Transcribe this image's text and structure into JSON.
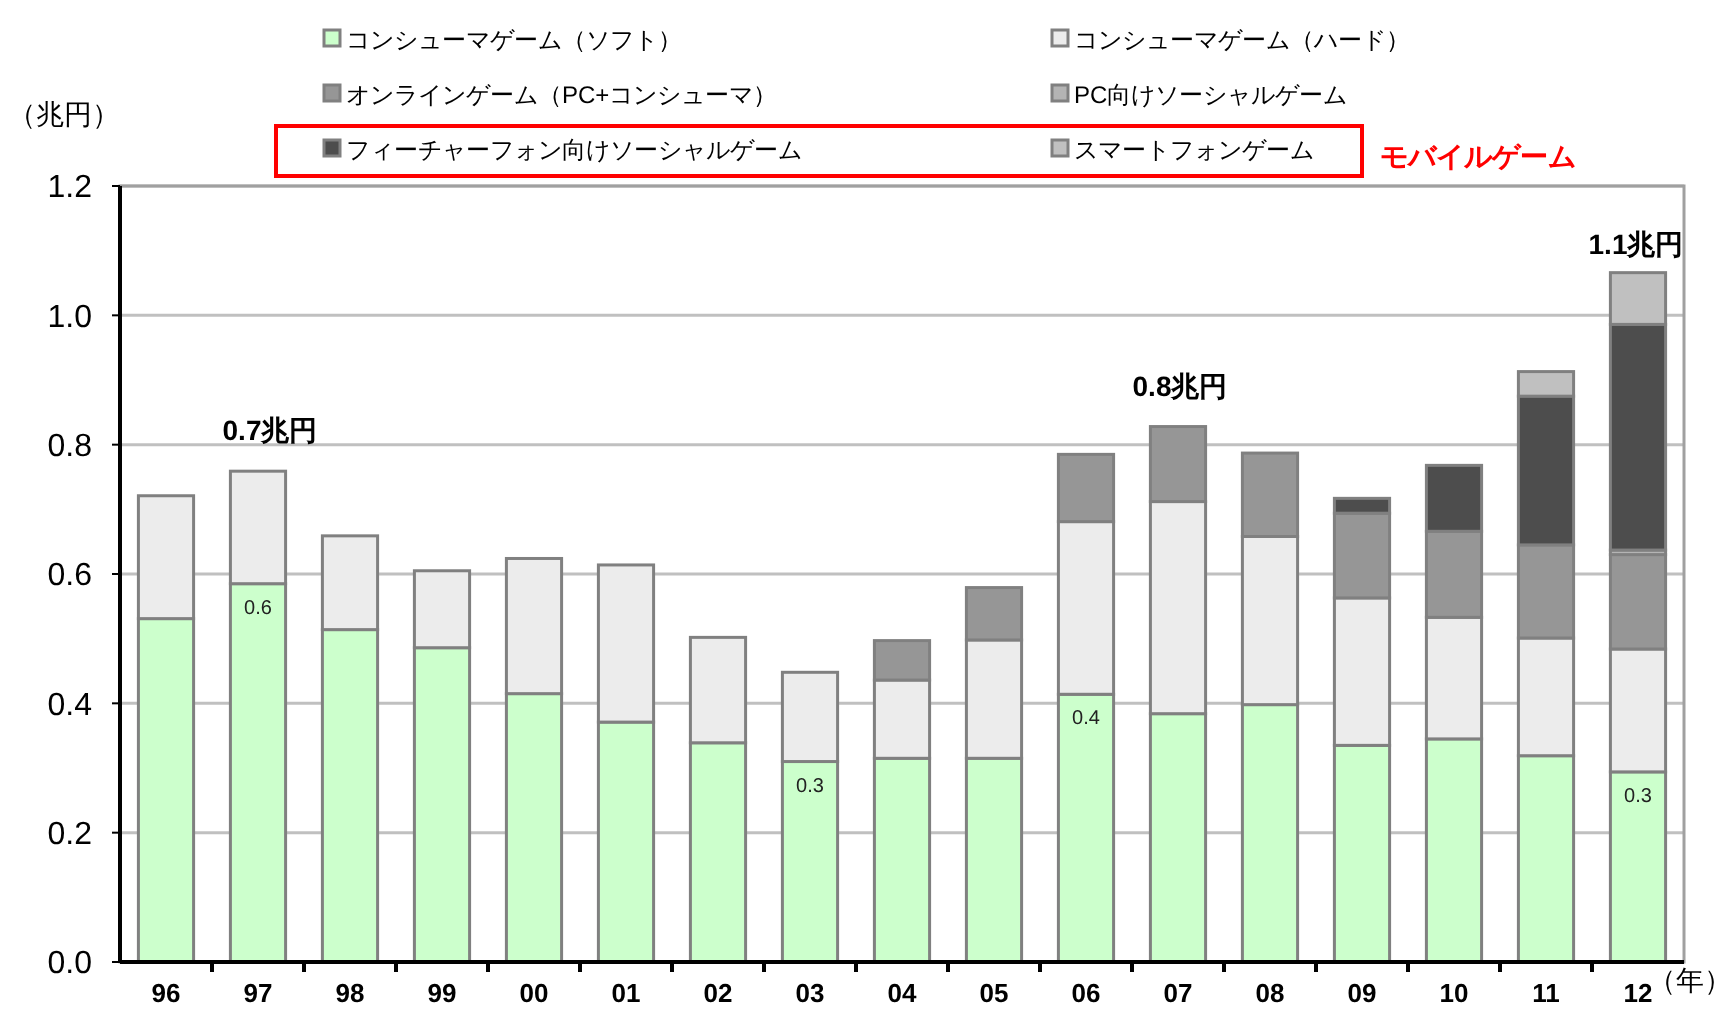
{
  "chart_data": {
    "type": "bar",
    "stacked": true,
    "categories": [
      "96",
      "97",
      "98",
      "99",
      "00",
      "01",
      "02",
      "03",
      "04",
      "05",
      "06",
      "07",
      "08",
      "09",
      "10",
      "11",
      "12"
    ],
    "series": [
      {
        "name": "コンシューマゲーム（ソフト）",
        "color": "#ccffcc",
        "values": [
          0.531,
          0.585,
          0.514,
          0.486,
          0.415,
          0.371,
          0.339,
          0.31,
          0.315,
          0.315,
          0.414,
          0.384,
          0.398,
          0.335,
          0.345,
          0.319,
          0.294
        ],
        "value_labels": [
          null,
          "0.6",
          null,
          null,
          null,
          null,
          null,
          "0.3",
          null,
          null,
          "0.4",
          null,
          null,
          null,
          null,
          null,
          "0.3"
        ]
      },
      {
        "name": "コンシューマゲーム（ハード）",
        "color": "#ececec",
        "values": [
          0.19,
          0.174,
          0.145,
          0.119,
          0.209,
          0.243,
          0.163,
          0.138,
          0.121,
          0.183,
          0.267,
          0.328,
          0.26,
          0.228,
          0.188,
          0.182,
          0.19
        ]
      },
      {
        "name": "オンラインゲーム（PC+コンシューマ）",
        "color": "#969696",
        "values": [
          null,
          null,
          null,
          null,
          null,
          null,
          null,
          null,
          0.061,
          0.081,
          0.104,
          0.116,
          0.129,
          0.131,
          0.133,
          0.144,
          0.146
        ]
      },
      {
        "name": "PC向けソーシャルゲーム",
        "color": "#b4b4b4",
        "values": [
          null,
          null,
          null,
          null,
          null,
          null,
          null,
          null,
          null,
          null,
          null,
          null,
          null,
          null,
          null,
          null,
          0.007
        ]
      },
      {
        "name": "フィーチャーフォン向けソーシャルゲーム",
        "color": "#4d4d4d",
        "values": [
          null,
          null,
          null,
          null,
          null,
          null,
          null,
          null,
          null,
          null,
          null,
          null,
          null,
          0.023,
          0.102,
          0.23,
          0.349
        ]
      },
      {
        "name": "スマートフォンゲーム",
        "color": "#c0c0c0",
        "values": [
          null,
          null,
          null,
          null,
          null,
          null,
          null,
          null,
          null,
          null,
          null,
          null,
          null,
          null,
          null,
          0.038,
          0.08
        ]
      }
    ],
    "ylim": [
      0,
      1.2
    ],
    "yticks": [
      {
        "value": 0,
        "label": "0.0"
      },
      {
        "value": 0.2,
        "label": "0.2"
      },
      {
        "value": 0.4,
        "label": "0.4"
      },
      {
        "value": 0.6,
        "label": "0.6"
      },
      {
        "value": 0.8,
        "label": "0.8"
      },
      {
        "value": 1,
        "label": "1.0"
      },
      {
        "value": 1.2,
        "label": "1.2"
      }
    ],
    "ylabel": "（兆円）",
    "xlabel": "（年）",
    "annotations": [
      "0.7兆円",
      "0.8兆円",
      "1.1兆円",
      "モバイルゲーム"
    ],
    "grid": "y",
    "legend": "top"
  }
}
